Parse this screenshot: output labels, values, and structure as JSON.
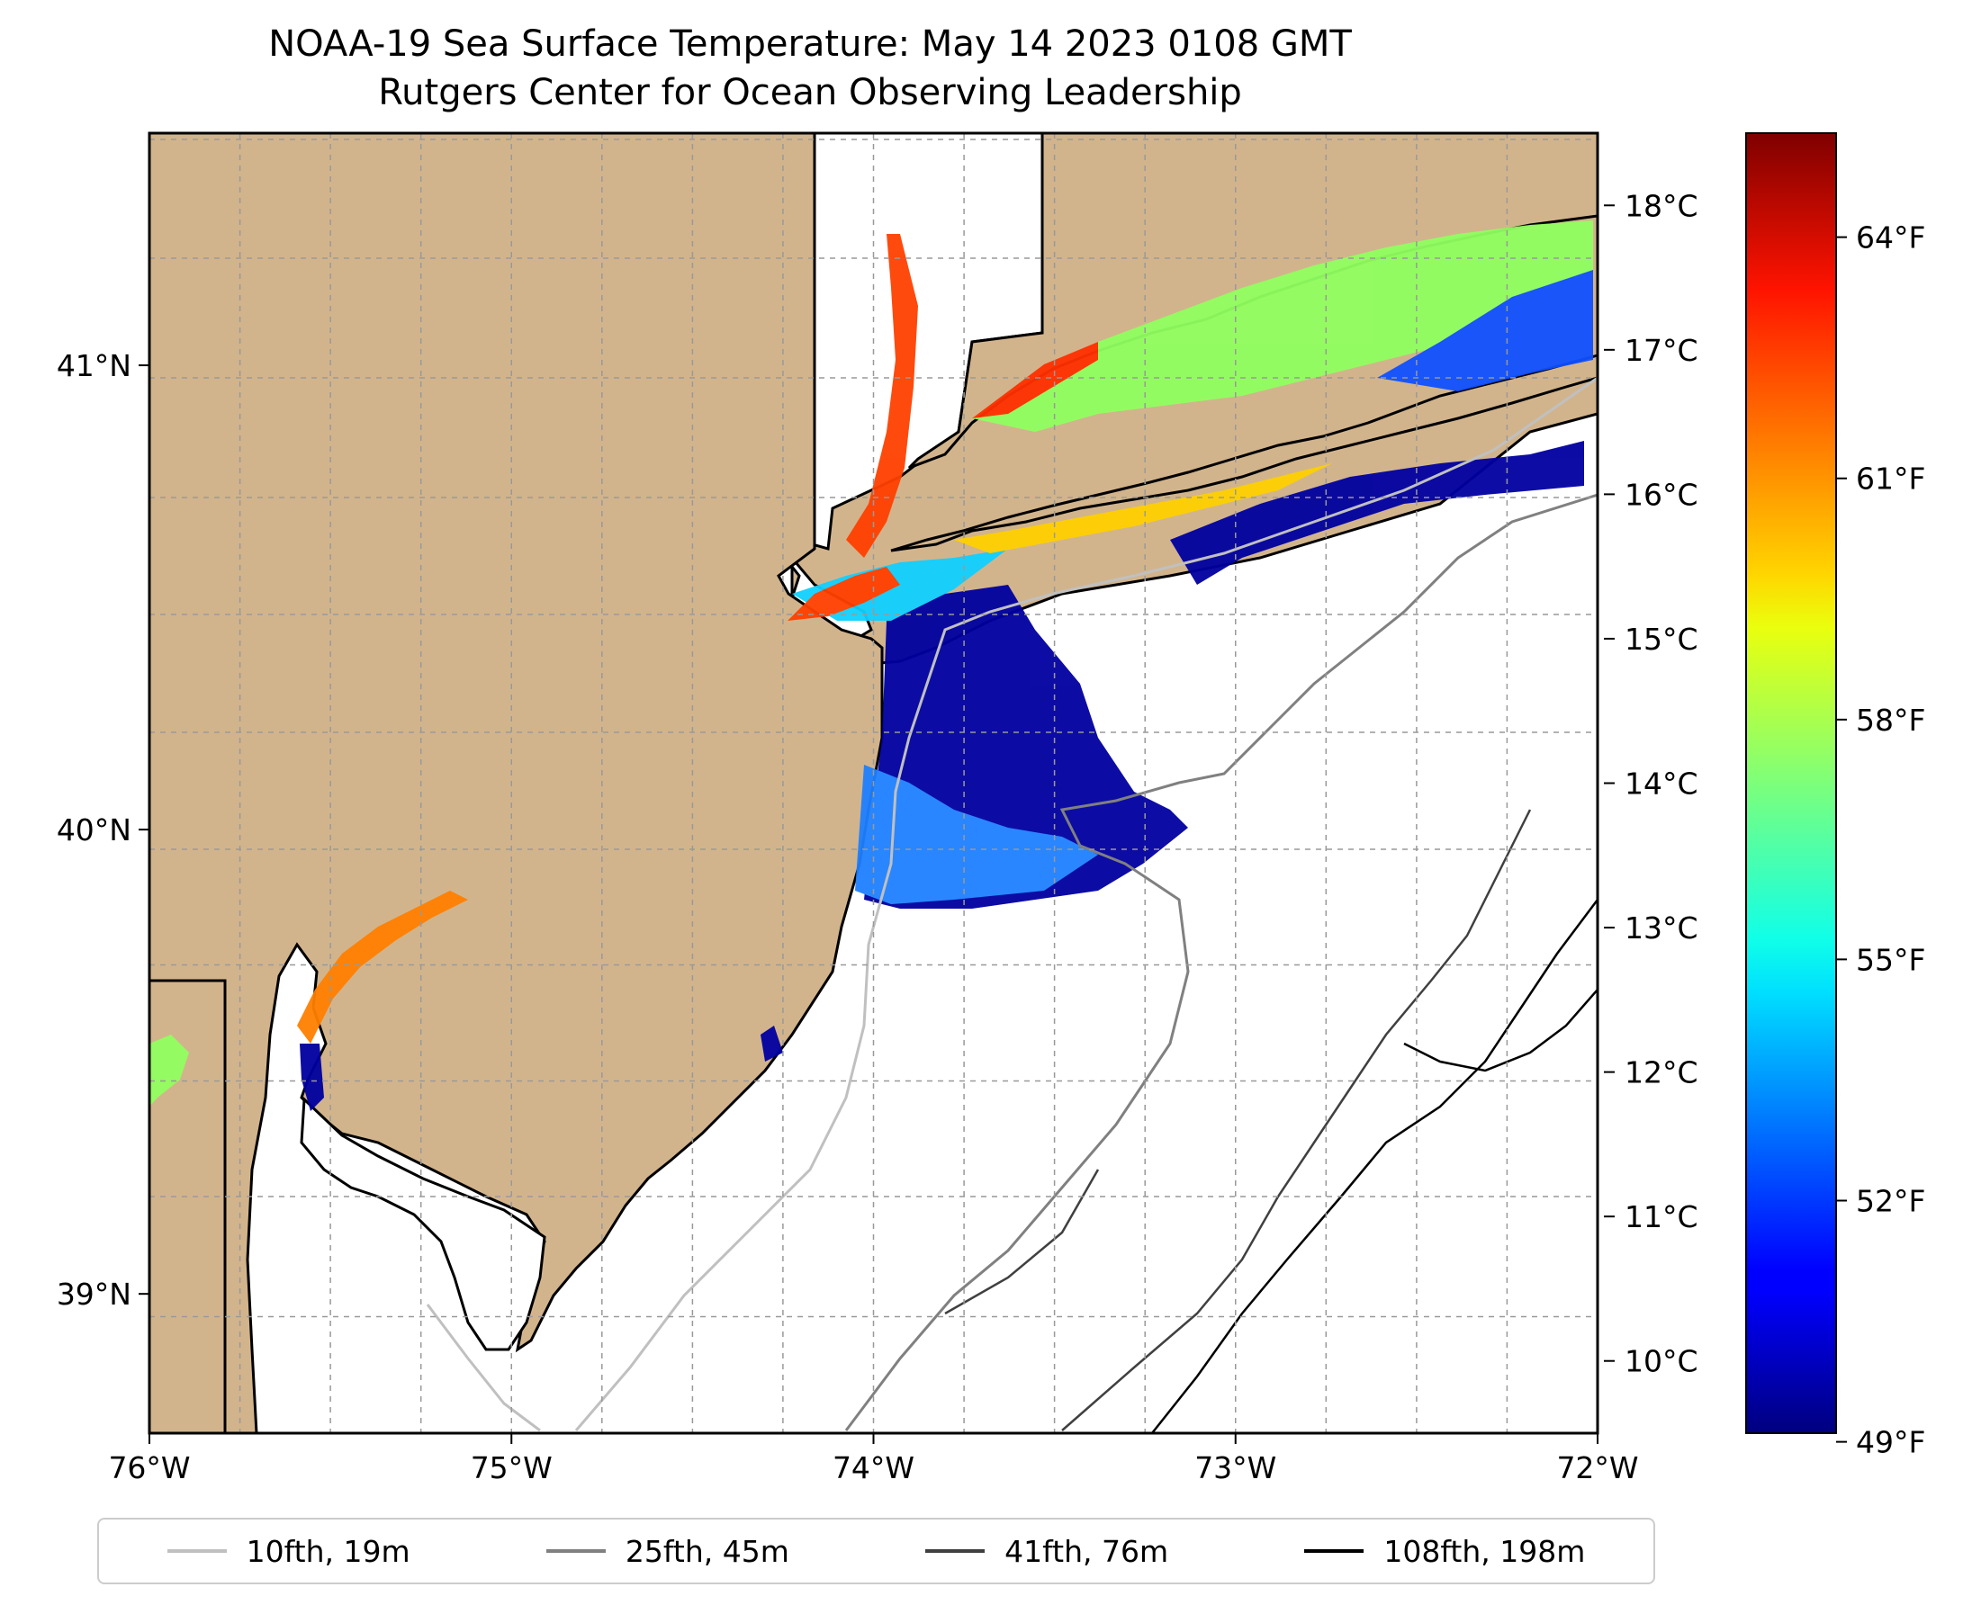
{
  "title": "NOAA-19 Sea Surface Temperature: May 14 2023 0108 GMT",
  "subtitle": "Rutgers Center for Ocean Observing Leadership",
  "chart_data": {
    "type": "heatmap",
    "map_extent": {
      "lon": [
        -76.0,
        -72.0
      ],
      "lat": [
        38.7,
        41.5
      ]
    },
    "x_ticks": [
      {
        "value": -76,
        "label": "76°W"
      },
      {
        "value": -75,
        "label": "75°W"
      },
      {
        "value": -74,
        "label": "74°W"
      },
      {
        "value": -73,
        "label": "73°W"
      },
      {
        "value": -72,
        "label": "72°W"
      }
    ],
    "y_ticks": [
      {
        "value": 41,
        "label": "41°N"
      },
      {
        "value": 40,
        "label": "40°N"
      },
      {
        "value": 39,
        "label": "39°N"
      }
    ],
    "grid": true,
    "land_color": "#d2b48c",
    "colorbar": {
      "colormap": "jet",
      "range_c": [
        9.5,
        18.5
      ],
      "celsius_ticks": [
        {
          "value": 10,
          "label": "10°C"
        },
        {
          "value": 11,
          "label": "11°C"
        },
        {
          "value": 12,
          "label": "12°C"
        },
        {
          "value": 13,
          "label": "13°C"
        },
        {
          "value": 14,
          "label": "14°C"
        },
        {
          "value": 15,
          "label": "15°C"
        },
        {
          "value": 16,
          "label": "16°C"
        },
        {
          "value": 17,
          "label": "17°C"
        },
        {
          "value": 18,
          "label": "18°C"
        }
      ],
      "fahrenheit_ticks": [
        {
          "value_c": 9.44,
          "label": "49°F"
        },
        {
          "value_c": 11.11,
          "label": "52°F"
        },
        {
          "value_c": 12.78,
          "label": "55°F"
        },
        {
          "value_c": 14.44,
          "label": "58°F"
        },
        {
          "value_c": 16.11,
          "label": "61°F"
        },
        {
          "value_c": 17.78,
          "label": "64°F"
        }
      ]
    },
    "legend": {
      "placement": "bottom",
      "entries": [
        {
          "label": "10fth, 19m",
          "color": "#c0c0c0"
        },
        {
          "label": "25fth, 45m",
          "color": "#808080"
        },
        {
          "label": "41fth, 76m",
          "color": "#404040"
        },
        {
          "label": "108fth, 198m",
          "color": "#000000"
        }
      ]
    }
  }
}
